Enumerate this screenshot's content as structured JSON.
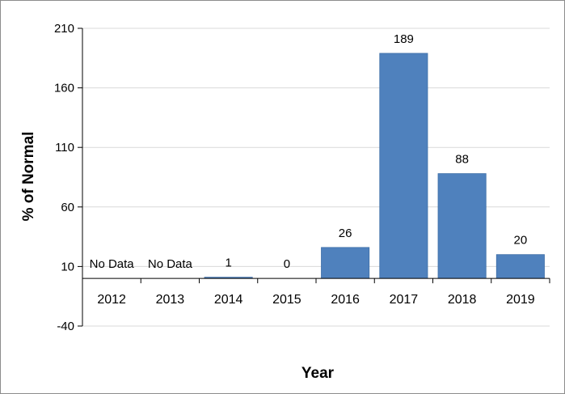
{
  "chart_data": {
    "type": "bar",
    "title": "",
    "xlabel": "Year",
    "ylabel": "% of Normal",
    "categories": [
      "2012",
      "2013",
      "2014",
      "2015",
      "2016",
      "2017",
      "2018",
      "2019"
    ],
    "values": [
      null,
      null,
      1,
      0,
      26,
      189,
      88,
      20
    ],
    "data_labels": [
      "No Data",
      "No Data",
      "1",
      "0",
      "26",
      "189",
      "88",
      "20"
    ],
    "yticks": [
      210,
      160,
      110,
      60,
      10,
      -40
    ],
    "ylim": [
      -40,
      210
    ],
    "grid": true,
    "legend": "none",
    "colors": {
      "bar": "#4f81bd",
      "bar_edge": "#3f6fa8",
      "grid": "#d9d9d9",
      "axis": "#000000"
    }
  }
}
